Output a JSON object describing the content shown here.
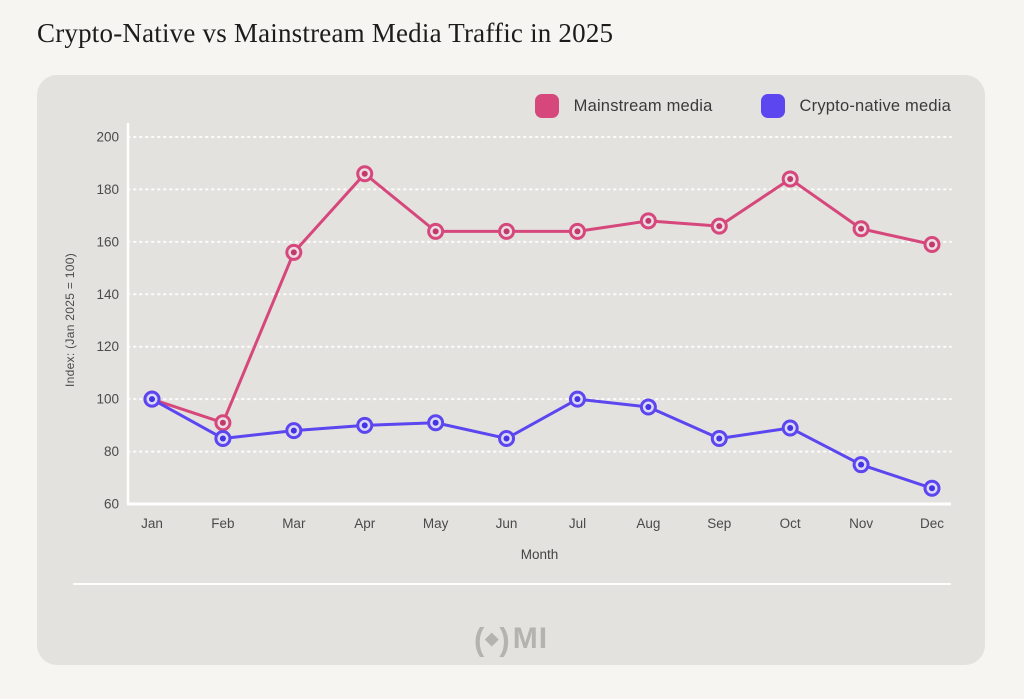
{
  "page": {
    "title": "Crypto-Native vs Mainstream Media Traffic in 2025",
    "background": "#f7f5f1",
    "panel_background": "#e4e2df"
  },
  "legend": {
    "items": [
      {
        "label": "Mainstream media",
        "color": "#d6487c"
      },
      {
        "label": "Crypto-native media",
        "color": "#5b46f0"
      }
    ]
  },
  "logo": {
    "paren_left": "(",
    "diamond": "◆",
    "paren_right": ")",
    "letters": "MI"
  },
  "chart_data": {
    "type": "line",
    "title": "Crypto-Native vs Mainstream Media Traffic in 2025",
    "xlabel": "Month",
    "ylabel": "Index: (Jan 2025 = 100)",
    "categories": [
      "Jan",
      "Feb",
      "Mar",
      "Apr",
      "May",
      "Jun",
      "Jul",
      "Aug",
      "Sep",
      "Oct",
      "Nov",
      "Dec"
    ],
    "series": [
      {
        "name": "Mainstream media",
        "color": "#d6487c",
        "marker_inner": "#eadde4",
        "marker_center": "#c23a69",
        "values": [
          100,
          91,
          156,
          186,
          164,
          164,
          164,
          168,
          166,
          184,
          165,
          159
        ]
      },
      {
        "name": "Crypto-native media",
        "color": "#5b46f0",
        "marker_inner": "#dcd8f6",
        "marker_center": "#4334e4",
        "values": [
          100,
          85,
          88,
          90,
          91,
          85,
          100,
          97,
          85,
          89,
          75,
          66
        ]
      }
    ],
    "ylim": [
      60,
      200
    ],
    "yticks": [
      60,
      80,
      100,
      120,
      140,
      160,
      180,
      200
    ],
    "grid": true,
    "gridline_color": "#ffffff",
    "legend_position": "top-right"
  }
}
